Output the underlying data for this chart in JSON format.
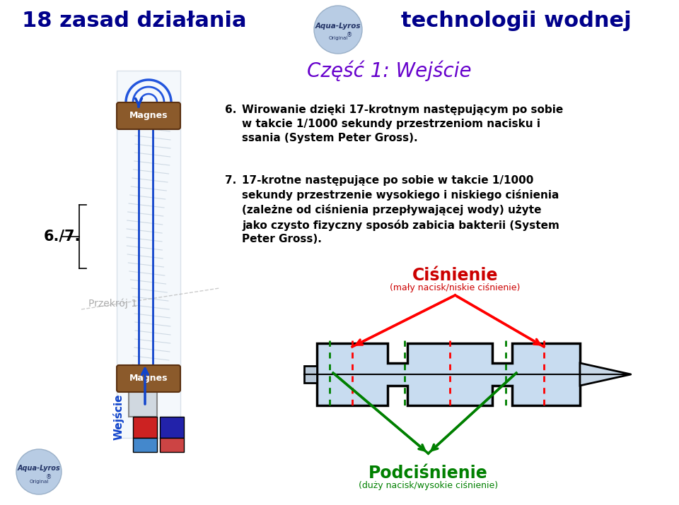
{
  "title_left": "18 zasad działania",
  "title_right": "technologii wodnej",
  "subtitle": "Część 1: Wejście",
  "title_color": "#00008B",
  "subtitle_color": "#6600CC",
  "text6_num": "6.",
  "text6": "Wirowanie dzięki 17-krotnym następującym po sobie\nw takcie 1/1000 sekundy przestrzeniom nacisku i\nssania (System Peter Gross).",
  "text7_num": "7.",
  "text7": "17-krotne następujące po sobie w takcie 1/1000\nsekundy przestrzenie wysokiego i niskiego ciśnienia\n(zależne od ciśnienia przepływającej wody) użyte\njako czysto fizyczny sposób zabicia bakterii (System\nPeter Gross).",
  "label_cisnienie": "Ciśnienie",
  "label_cisnienie_sub": "(mały nacisk/niskie ciśnienie)",
  "label_podcisnienie": "Podciśnienie",
  "label_podcisnienie_sub": "(duży nacisk/wysokie ciśnienie)",
  "label_przekroj": "Przekrój 1",
  "label_wejscie": "Wejście",
  "label_67": "6./7.",
  "label_magnes": "Magnes",
  "cisnienie_color": "#CC0000",
  "podcisnienie_color": "#008000",
  "bg_color": "#FFFFFF",
  "title_fontsize": 22,
  "subtitle_fontsize": 20,
  "body_fontsize": 11,
  "diagram_fill": "#C8DCF0",
  "arrow_fill": "#C8D8E8",
  "mag_color": "#8B5A2B",
  "blue_arrow": "#1144CC",
  "logo_fill": "#B8CCE4",
  "logo_text": "#223366"
}
